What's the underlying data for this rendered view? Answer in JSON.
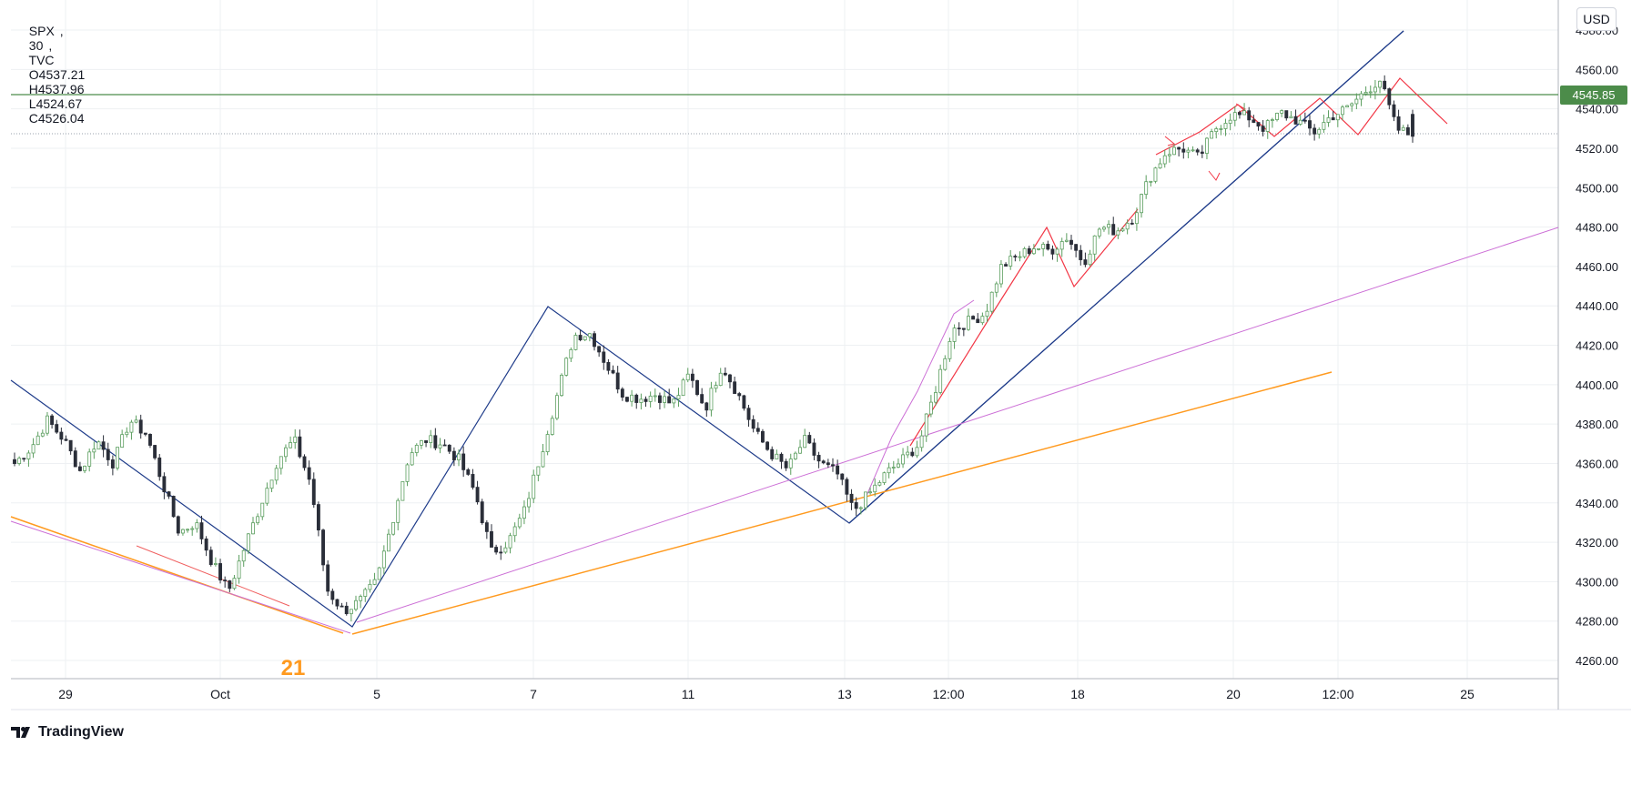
{
  "legend": {
    "symbol": "SPX",
    "interval": "30",
    "source": "TVC",
    "open": "O4537.21",
    "high": "H4537.96",
    "low": "L4524.67",
    "close": "C4526.04"
  },
  "currency": "USD",
  "brand": "TradingView",
  "annotation_label": "21",
  "colors": {
    "up": "#5b9e5f",
    "down": "#2a2e39",
    "hline": "#4c8c4a",
    "trend_blue": "#1f3c8a",
    "orange": "#ff9a1f",
    "violet": "#cc6fd6",
    "red": "#f23645",
    "grid": "#eef0f3"
  },
  "chart_data": {
    "type": "candlestick",
    "title": "SPX, 30, TVC",
    "ylim": [
      4250,
      4585
    ],
    "y_ticks": [
      4260,
      4280,
      4300,
      4320,
      4340,
      4360,
      4380,
      4400,
      4420,
      4440,
      4460,
      4480,
      4500,
      4520,
      4540,
      4560,
      4580
    ],
    "x_tick_labels": [
      "29",
      "Oct",
      "5",
      "7",
      "11",
      "13",
      "12:00",
      "18",
      "20",
      "12:00",
      "25"
    ],
    "price_line": {
      "value": 4545.85,
      "label": "4545.85"
    },
    "last_close": 4526.04,
    "ohlc_last": {
      "open": 4537.21,
      "high": 4537.96,
      "low": 4524.67,
      "close": 4526.04
    },
    "waypoints": [
      4360,
      4368,
      4382,
      4372,
      4356,
      4372,
      4360,
      4382,
      4375,
      4350,
      4325,
      4330,
      4310,
      4295,
      4318,
      4340,
      4362,
      4372,
      4350,
      4296,
      4285,
      4290,
      4300,
      4332,
      4365,
      4372,
      4370,
      4362,
      4345,
      4315,
      4320,
      4336,
      4365,
      4395,
      4425,
      4426,
      4410,
      4395,
      4393,
      4395,
      4390,
      4405,
      4388,
      4410,
      4395,
      4376,
      4365,
      4357,
      4372,
      4360,
      4355,
      4336,
      4345,
      4355,
      4362,
      4370,
      4398,
      4428,
      4432,
      4436,
      4460,
      4465,
      4470,
      4468,
      4475,
      4462,
      4480,
      4478,
      4485,
      4505,
      4518,
      4520,
      4515,
      4530,
      4537,
      4536,
      4530,
      4538,
      4534,
      4528,
      4536,
      4540,
      4548,
      4555,
      4530,
      4526
    ]
  }
}
